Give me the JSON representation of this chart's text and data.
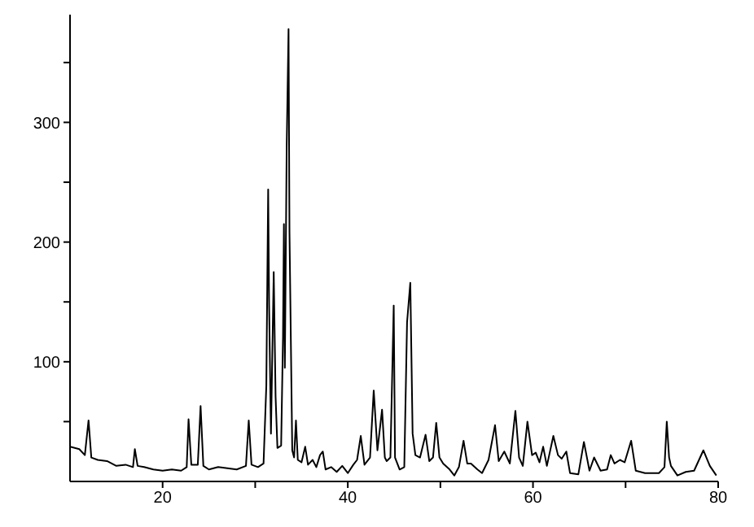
{
  "chart_data": {
    "type": "line",
    "xlim": [
      10,
      80
    ],
    "ylim": [
      0,
      390
    ],
    "xticks": [
      20,
      {
        "value": 30,
        "label": null
      },
      40,
      {
        "value": 50,
        "label": null
      },
      60,
      {
        "value": 70,
        "label": null
      },
      80
    ],
    "yticks": [
      {
        "value": 50,
        "label": null
      },
      100,
      {
        "value": 150,
        "label": null
      },
      200,
      {
        "value": 250,
        "label": null
      },
      300,
      {
        "value": 350,
        "label": null
      }
    ],
    "grid": false,
    "legend": false,
    "marker": "none",
    "line_style": "solid",
    "x": [
      10,
      11,
      11.6,
      12.0,
      12.3,
      13,
      14,
      15,
      16,
      16.8,
      17.0,
      17.3,
      18,
      19,
      20,
      21,
      22,
      22.6,
      22.8,
      23.1,
      23.8,
      24.1,
      24.4,
      25,
      26,
      27,
      28,
      29,
      29.3,
      29.6,
      30.3,
      30.9,
      31.2,
      31.4,
      31.5,
      31.7,
      32.0,
      32.2,
      32.4,
      32.8,
      33.0,
      33.1,
      33.2,
      33.4,
      33.6,
      33.7,
      34.0,
      34.2,
      34.4,
      34.6,
      35.0,
      35.4,
      35.7,
      36.2,
      36.6,
      37.0,
      37.3,
      37.6,
      38.2,
      38.8,
      39.4,
      40.0,
      40.6,
      41.0,
      41.4,
      41.8,
      42.4,
      42.8,
      43.2,
      43.7,
      44.0,
      44.2,
      44.6,
      44.96,
      45.1,
      45.6,
      46.1,
      46.4,
      46.75,
      47.0,
      47.3,
      47.8,
      48.4,
      48.8,
      49.2,
      49.55,
      49.9,
      50.3,
      51,
      51.5,
      52.0,
      52.5,
      52.9,
      53.3,
      54,
      54.5,
      55.2,
      55.9,
      56.3,
      56.9,
      57.5,
      58.1,
      58.5,
      58.9,
      59.4,
      59.9,
      60.3,
      60.7,
      61.1,
      61.5,
      62.2,
      62.7,
      63.1,
      63.6,
      64.0,
      64.9,
      65.5,
      66.1,
      66.6,
      67.3,
      68.0,
      68.4,
      68.8,
      69.4,
      69.9,
      70.6,
      71.1,
      72.1,
      73.6,
      74.2,
      74.45,
      74.7,
      74.9,
      75.6,
      76.5,
      77.4,
      78.4,
      79.1,
      79.8
    ],
    "series": [
      {
        "color": "#000000",
        "values": [
          29,
          27,
          22,
          51,
          20,
          18,
          17,
          13,
          14,
          12,
          27,
          13,
          12,
          10,
          9,
          10,
          9,
          12,
          52,
          14,
          14,
          63,
          13,
          10,
          12,
          11,
          10,
          13,
          51,
          14,
          12,
          15,
          80,
          244,
          148,
          40,
          175,
          71,
          28,
          30,
          120,
          215,
          95,
          280,
          378,
          209,
          26,
          20,
          51,
          18,
          16,
          29,
          14,
          18,
          12,
          22,
          25,
          10,
          12,
          8,
          13,
          7,
          14,
          18,
          38,
          14,
          20,
          76,
          26,
          60,
          20,
          17,
          20,
          147,
          20,
          10,
          12,
          133,
          166,
          40,
          22,
          20,
          39,
          17,
          20,
          49,
          20,
          15,
          10,
          5,
          12,
          34,
          15,
          15,
          10,
          7,
          18,
          47,
          17,
          25,
          15,
          59,
          20,
          13,
          50,
          22,
          24,
          16,
          29,
          13,
          38,
          22,
          19,
          25,
          7,
          6,
          33,
          9,
          20,
          9,
          10,
          22,
          15,
          18,
          16,
          34,
          9,
          7,
          7,
          12,
          50,
          20,
          13,
          5,
          8,
          9,
          26,
          13,
          5
        ]
      }
    ]
  }
}
